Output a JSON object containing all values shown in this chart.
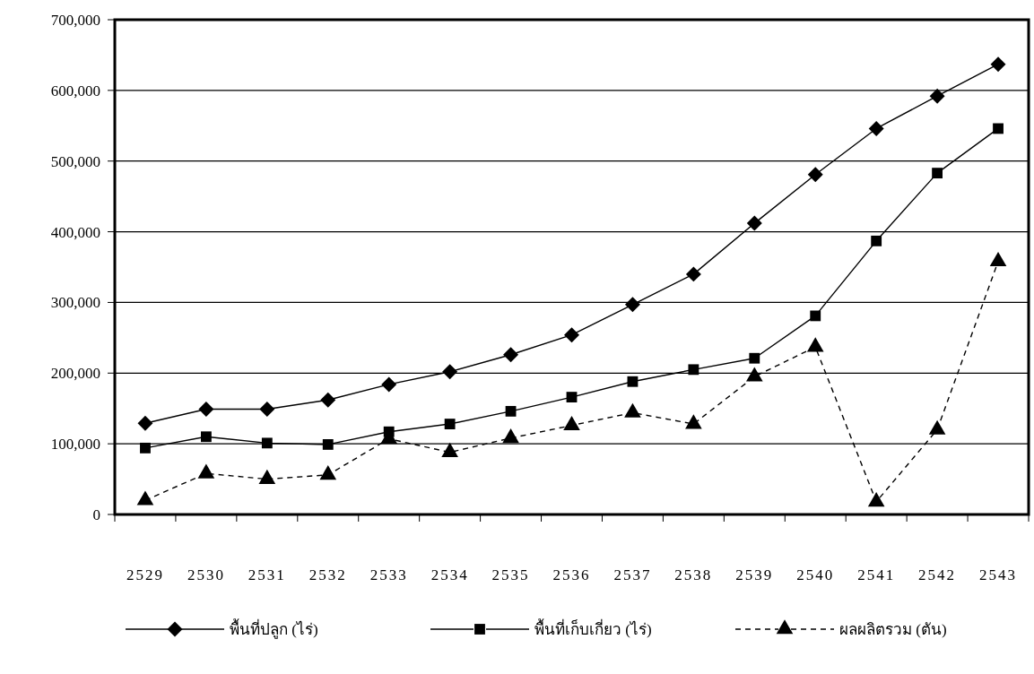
{
  "chart_data": {
    "type": "line",
    "categories": [
      "2529",
      "2530",
      "2531",
      "2532",
      "2533",
      "2534",
      "2535",
      "2536",
      "2537",
      "2538",
      "2539",
      "2540",
      "2541",
      "2542",
      "2543"
    ],
    "ylim": [
      0,
      700000
    ],
    "yticks": [
      {
        "value": 0,
        "label": "0"
      },
      {
        "value": 100000,
        "label": "100,000"
      },
      {
        "value": 200000,
        "label": "200,000"
      },
      {
        "value": 300000,
        "label": "300,000"
      },
      {
        "value": 400000,
        "label": "400,000"
      },
      {
        "value": 500000,
        "label": "500,000"
      },
      {
        "value": 600000,
        "label": "600,000"
      },
      {
        "value": 700000,
        "label": "700,000"
      }
    ],
    "grid": "y",
    "legend": "bottom",
    "series": [
      {
        "name": "พื้นที่ปลูก (ไร่)",
        "color": "#000000",
        "marker": "diamond",
        "line_style": "solid",
        "values": [
          129000,
          149000,
          149000,
          162000,
          184000,
          202000,
          226000,
          254000,
          297000,
          340000,
          412000,
          481000,
          546000,
          592000,
          637000
        ]
      },
      {
        "name": "พื้นที่เก็บเกี่ยว (ไร่)",
        "color": "#000000",
        "marker": "square",
        "line_style": "solid",
        "values": [
          94000,
          110000,
          101000,
          99000,
          117000,
          128000,
          146000,
          166000,
          188000,
          205000,
          221000,
          281000,
          387000,
          483000,
          546000
        ]
      },
      {
        "name": "ผลผลิตรวม (ตัน)",
        "color": "#000000",
        "marker": "triangle",
        "line_style": "dashed",
        "values": [
          20000,
          58000,
          50000,
          56000,
          107000,
          88000,
          108000,
          126000,
          144000,
          128000,
          195000,
          237000,
          18000,
          120000,
          358000
        ]
      }
    ]
  }
}
